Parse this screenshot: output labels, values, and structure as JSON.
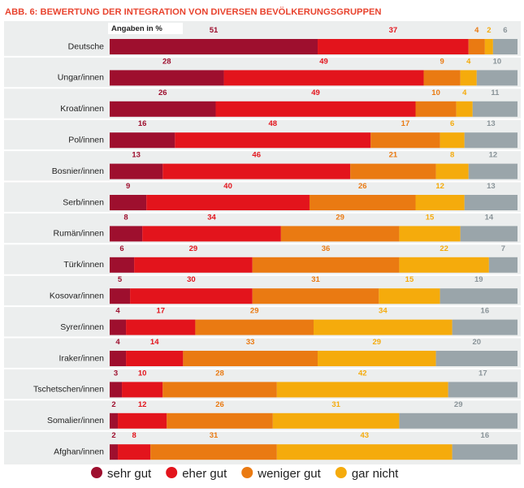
{
  "chart_data": {
    "type": "stacked-barh",
    "title": "ABB. 6: BEWERTUNG DER INTEGRATION VON DIVERSEN BEVÖLKERUNGSGRUPPEN",
    "unit_label": "Angaben in %",
    "categories": [
      "Deutsche",
      "Ungar/innen",
      "Kroat/innen",
      "Pol/innen",
      "Bosnier/innen",
      "Serb/innen",
      "Rumän/innen",
      "Türk/innen",
      "Kosovar/innen",
      "Syrer/innen",
      "Iraker/innen",
      "Tschetschen/innen",
      "Somalier/innen",
      "Afghan/innen"
    ],
    "xlim": [
      0,
      100
    ],
    "legend": "bottom",
    "series": [
      {
        "name": "sehr gut",
        "color": "#9e0f2e",
        "values": [
          51,
          28,
          26,
          16,
          13,
          9,
          8,
          6,
          5,
          4,
          4,
          3,
          2,
          2
        ]
      },
      {
        "name": "eher gut",
        "color": "#e3141c",
        "values": [
          37,
          49,
          49,
          48,
          46,
          40,
          34,
          29,
          30,
          17,
          14,
          10,
          12,
          8
        ]
      },
      {
        "name": "weniger gut",
        "color": "#ea7a12",
        "values": [
          4,
          9,
          10,
          17,
          21,
          26,
          29,
          36,
          31,
          29,
          33,
          28,
          26,
          31
        ]
      },
      {
        "name": "gar nicht",
        "color": "#f5ab0c",
        "values": [
          2,
          4,
          4,
          6,
          8,
          12,
          15,
          22,
          15,
          34,
          29,
          42,
          31,
          43
        ]
      },
      {
        "color": "#9aa5aa",
        "values": [
          6,
          10,
          11,
          13,
          12,
          13,
          14,
          7,
          19,
          16,
          20,
          17,
          29,
          16
        ]
      }
    ]
  }
}
